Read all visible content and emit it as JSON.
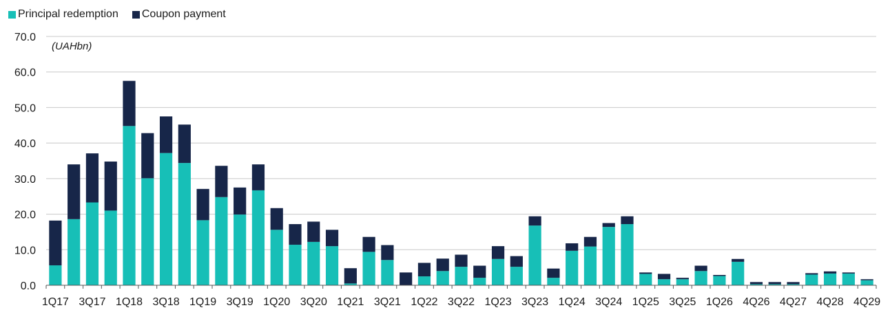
{
  "chart_data": {
    "type": "bar",
    "stacked": true,
    "unit_label": "(UAHbn)",
    "ylim": [
      0,
      70
    ],
    "yticks": [
      "0.0",
      "10.0",
      "20.0",
      "30.0",
      "40.0",
      "50.0",
      "60.0",
      "70.0"
    ],
    "grid": true,
    "legend_position": "top-left",
    "colors": {
      "principal": "#17bfb7",
      "coupon": "#172649",
      "grid": "#c8c8c8",
      "axis": "#555555"
    },
    "categories": [
      "1Q17",
      "2Q17",
      "3Q17",
      "4Q17",
      "1Q18",
      "2Q18",
      "3Q18",
      "4Q18",
      "1Q19",
      "2Q19",
      "3Q19",
      "4Q19",
      "1Q20",
      "2Q20",
      "3Q20",
      "4Q20",
      "1Q21",
      "2Q21",
      "3Q21",
      "4Q21",
      "1Q22",
      "2Q22",
      "3Q22",
      "4Q22",
      "1Q23",
      "2Q23",
      "3Q23",
      "4Q23",
      "1Q24",
      "2Q24",
      "3Q24",
      "4Q24",
      "1Q25",
      "2Q25",
      "3Q25",
      "4Q25",
      "1Q26",
      "2Q26",
      "4Q26",
      "2Q27",
      "4Q27",
      "2Q28",
      "4Q28",
      "2Q29",
      "4Q29"
    ],
    "tick_labels": [
      "1Q17",
      "3Q17",
      "1Q18",
      "3Q18",
      "1Q19",
      "3Q19",
      "1Q20",
      "3Q20",
      "1Q21",
      "3Q21",
      "1Q22",
      "3Q22",
      "1Q23",
      "3Q23",
      "1Q24",
      "3Q24",
      "1Q25",
      "3Q25",
      "1Q26",
      "4Q26",
      "4Q27",
      "4Q28",
      "4Q29"
    ],
    "series": [
      {
        "name": "Principal redemption",
        "values": [
          5.6,
          18.6,
          23.3,
          21.0,
          44.8,
          30.1,
          37.2,
          34.4,
          18.3,
          24.8,
          19.9,
          26.7,
          15.6,
          11.4,
          12.2,
          11.0,
          0.5,
          9.4,
          7.1,
          0.0,
          2.5,
          4.0,
          5.2,
          2.1,
          7.4,
          5.2,
          16.8,
          2.1,
          9.7,
          10.9,
          16.4,
          17.2,
          3.2,
          1.7,
          1.7,
          4.0,
          2.6,
          6.6,
          0.3,
          0.3,
          0.3,
          3.0,
          3.3,
          3.3,
          1.4
        ]
      },
      {
        "name": "Coupon payment",
        "values": [
          12.6,
          15.4,
          13.8,
          13.8,
          12.7,
          12.7,
          10.3,
          10.8,
          8.8,
          8.8,
          7.6,
          7.3,
          6.1,
          5.8,
          5.7,
          4.6,
          4.3,
          4.2,
          4.2,
          3.6,
          3.8,
          3.5,
          3.4,
          3.4,
          3.6,
          3.0,
          2.6,
          2.6,
          2.1,
          2.7,
          1.1,
          2.2,
          0.4,
          1.5,
          0.4,
          1.5,
          0.3,
          0.8,
          0.6,
          0.6,
          0.6,
          0.4,
          0.6,
          0.3,
          0.3
        ]
      }
    ]
  }
}
